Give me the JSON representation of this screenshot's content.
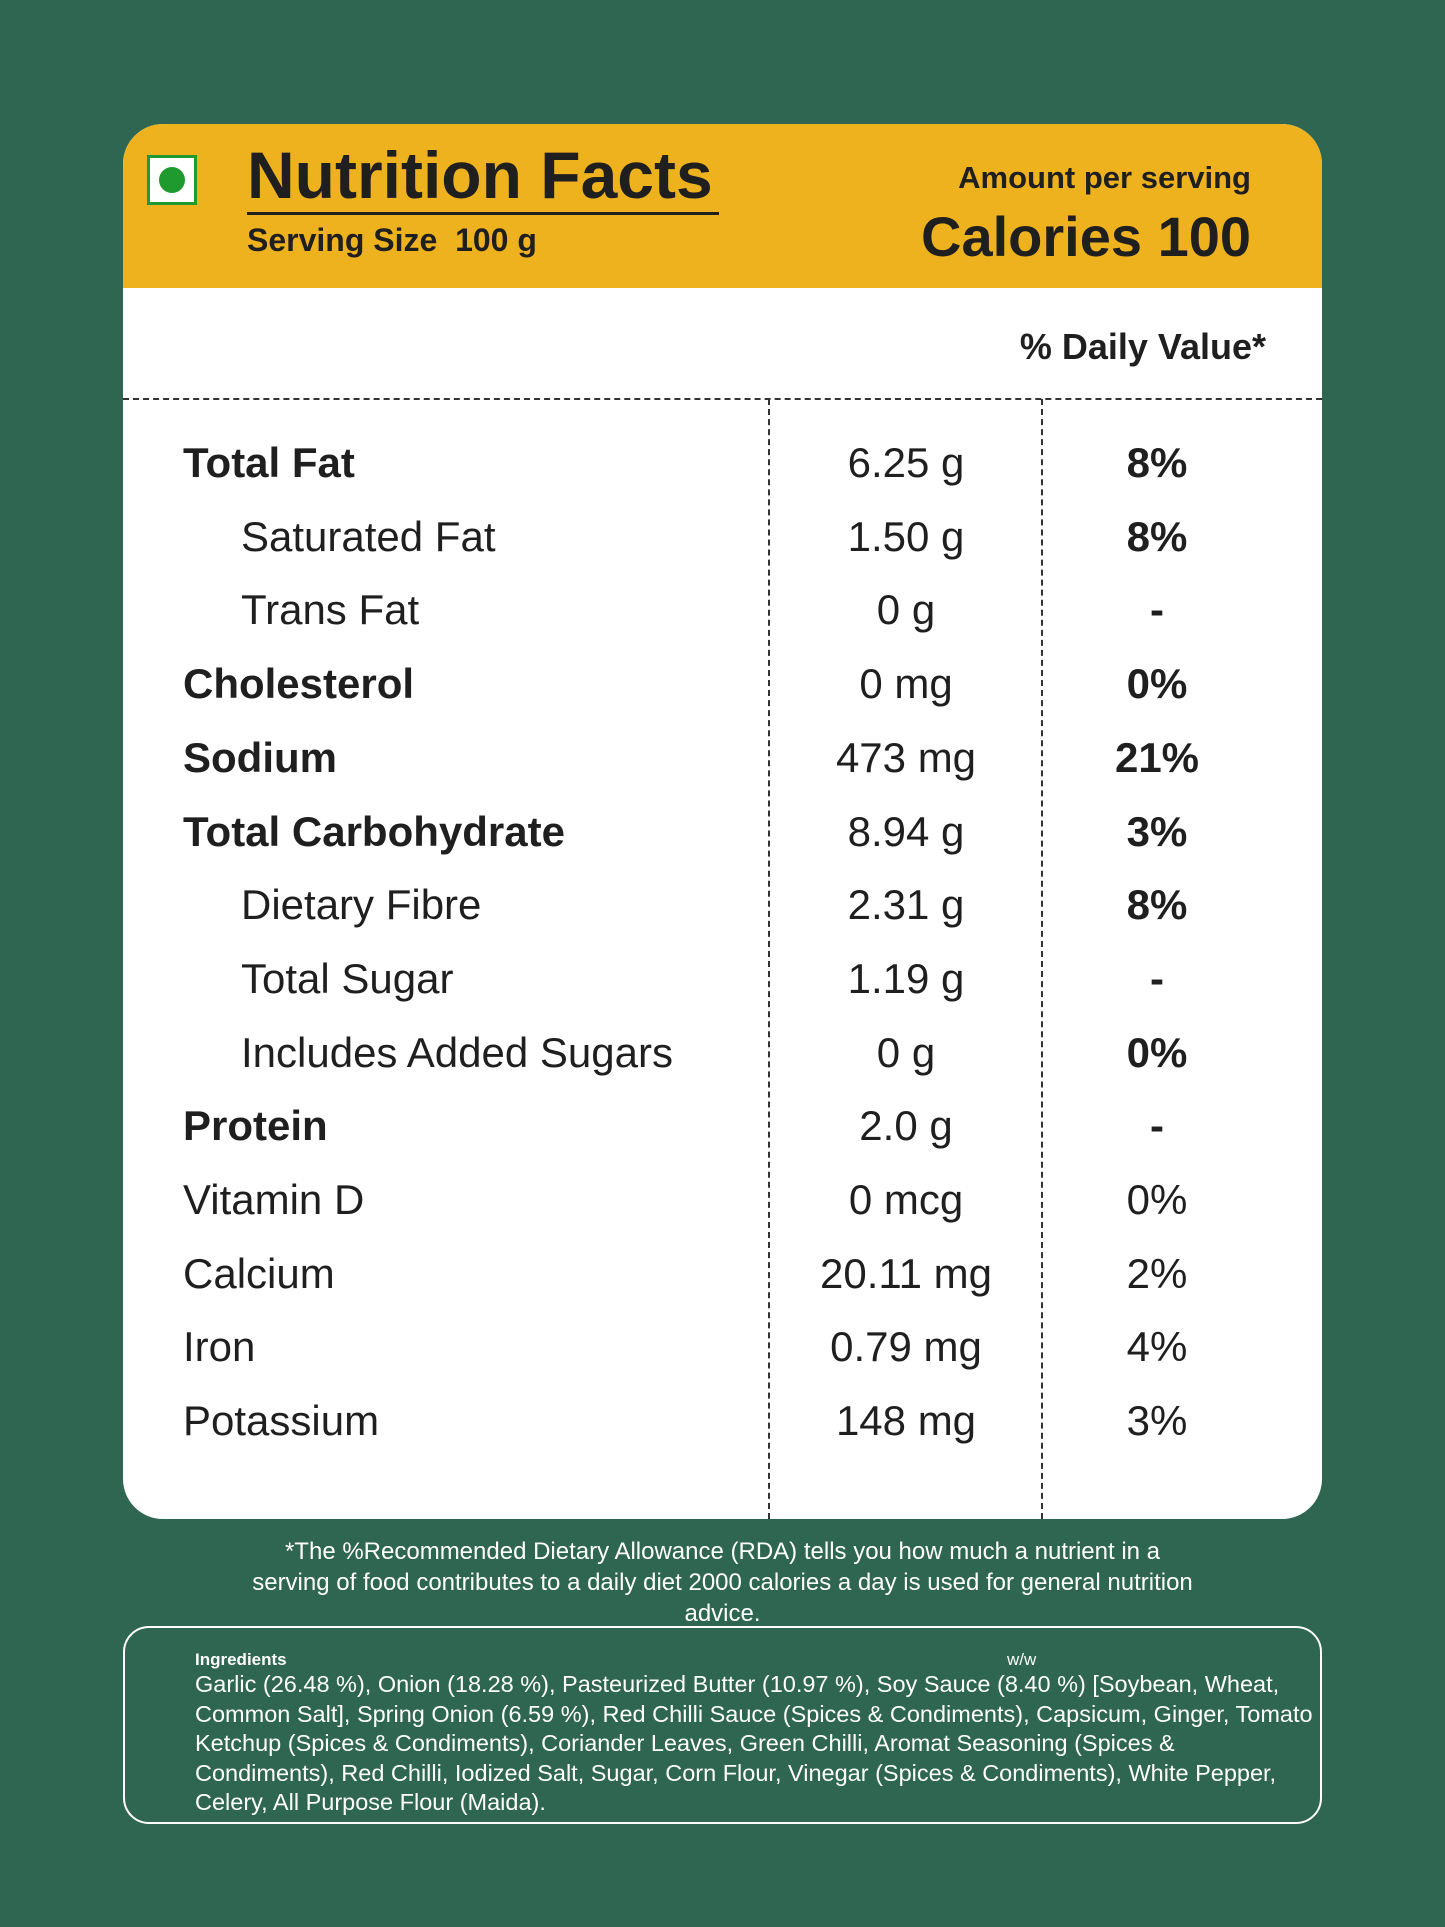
{
  "header": {
    "title": "Nutrition Facts",
    "serving_size": "Serving Size  100 g",
    "amount_label": "Amount per serving",
    "calories": "Calories 100"
  },
  "daily_value_header": "% Daily Value*",
  "rows": [
    {
      "name": "Total Fat",
      "amount": "6.25 g",
      "dv": "8%",
      "bold": true,
      "indent": false,
      "dv_bold": true
    },
    {
      "name": "Saturated Fat",
      "amount": "1.50 g",
      "dv": "8%",
      "bold": false,
      "indent": true,
      "dv_bold": true
    },
    {
      "name": "Trans Fat",
      "amount": "0 g",
      "dv": "-",
      "bold": false,
      "indent": true,
      "dv_bold": true
    },
    {
      "name": "Cholesterol",
      "amount": "0 mg",
      "dv": "0%",
      "bold": true,
      "indent": false,
      "dv_bold": true
    },
    {
      "name": "Sodium",
      "amount": "473 mg",
      "dv": "21%",
      "bold": true,
      "indent": false,
      "dv_bold": true
    },
    {
      "name": "Total Carbohydrate",
      "amount": "8.94 g",
      "dv": "3%",
      "bold": true,
      "indent": false,
      "dv_bold": true
    },
    {
      "name": "Dietary Fibre",
      "amount": "2.31 g",
      "dv": "8%",
      "bold": false,
      "indent": true,
      "dv_bold": true
    },
    {
      "name": "Total Sugar",
      "amount": "1.19 g",
      "dv": "-",
      "bold": false,
      "indent": true,
      "dv_bold": true
    },
    {
      "name": "Includes Added Sugars",
      "amount": "0 g",
      "dv": "0%",
      "bold": false,
      "indent": true,
      "dv_bold": true
    },
    {
      "name": "Protein",
      "amount": "2.0 g",
      "dv": "-",
      "bold": true,
      "indent": false,
      "dv_bold": true
    },
    {
      "name": "Vitamin D",
      "amount": "0 mcg",
      "dv": "0%",
      "bold": false,
      "indent": false,
      "dv_bold": false
    },
    {
      "name": "Calcium",
      "amount": "20.11 mg",
      "dv": "2%",
      "bold": false,
      "indent": false,
      "dv_bold": false
    },
    {
      "name": "Iron",
      "amount": "0.79 mg",
      "dv": "4%",
      "bold": false,
      "indent": false,
      "dv_bold": false
    },
    {
      "name": "Potassium",
      "amount": "148 mg",
      "dv": "3%",
      "bold": false,
      "indent": false,
      "dv_bold": false
    }
  ],
  "footnote": "*The %Recommended Dietary Allowance (RDA) tells you how much a nutrient in a serving of food contributes to a daily diet 2000 calories a day is used for general nutrition advice.",
  "ingredients": {
    "label": "Ingredients",
    "unit": "w/w",
    "text": "Garlic (26.48 %), Onion (18.28 %), Pasteurized Butter (10.97 %), Soy Sauce (8.40 %) [Soybean, Wheat, Common Salt], Spring Onion (6.59 %), Red Chilli Sauce (Spices & Condiments), Capsicum, Ginger, Tomato Ketchup (Spices & Condiments), Coriander Leaves, Green Chilli, Aromat Seasoning (Spices & Condiments), Red Chilli, Iodized Salt, Sugar, Corn Flour, Vinegar (Spices & Condiments), White Pepper, Celery, All Purpose Flour (Maida)."
  }
}
